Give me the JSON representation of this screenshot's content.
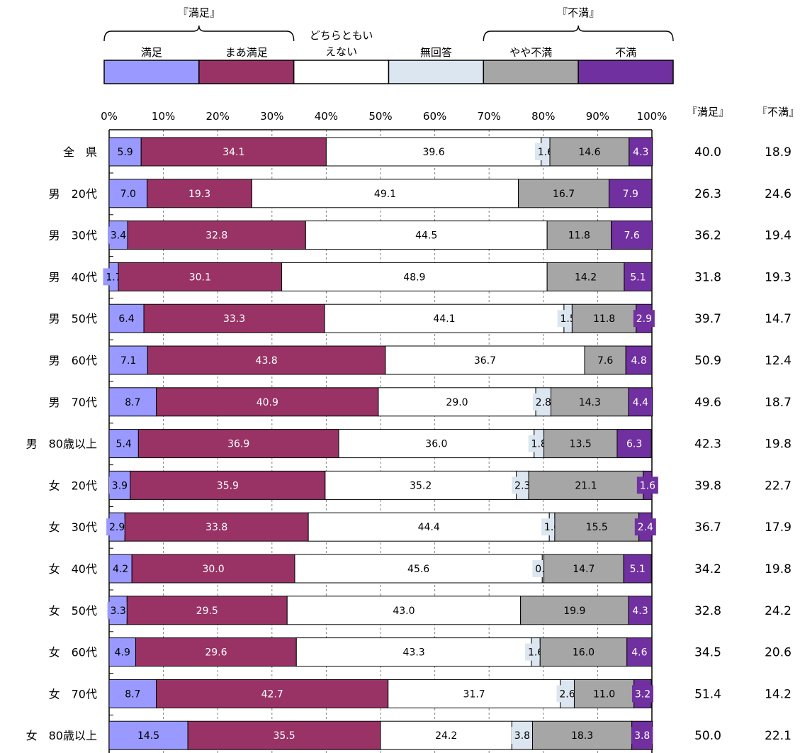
{
  "chart_data": {
    "type": "bar",
    "orientation": "horizontal",
    "stacked": true,
    "xlim": [
      0,
      100
    ],
    "x_ticks": [
      "0%",
      "10%",
      "20%",
      "30%",
      "40%",
      "50%",
      "60%",
      "70%",
      "80%",
      "90%",
      "100%"
    ],
    "legend": {
      "placement": "top",
      "groups": [
        {
          "label": "『満足』",
          "spans": [
            "満足",
            "まあ満足"
          ]
        },
        {
          "label": "『不満』",
          "spans": [
            "やや不満",
            "不満"
          ]
        }
      ]
    },
    "categories": [
      "全　県",
      "男　20代",
      "男　30代",
      "男　40代",
      "男　50代",
      "男　60代",
      "男　70代",
      "男　80歳以上",
      "女　20代",
      "女　30代",
      "女　40代",
      "女　50代",
      "女　60代",
      "女　70代",
      "女　80歳以上"
    ],
    "series": [
      {
        "name": "満足",
        "color": "#9999ff",
        "values": [
          5.9,
          7.0,
          3.4,
          1.7,
          6.4,
          7.1,
          8.7,
          5.4,
          3.9,
          2.9,
          4.2,
          3.3,
          4.9,
          8.7,
          14.5
        ]
      },
      {
        "name": "まあ満足",
        "color": "#993366",
        "values": [
          34.1,
          19.3,
          32.8,
          30.1,
          33.3,
          43.8,
          40.9,
          36.9,
          35.9,
          33.8,
          30.0,
          29.5,
          29.6,
          42.7,
          35.5
        ]
      },
      {
        "name": "どちらともいえない",
        "color": "#ffffff",
        "values": [
          39.6,
          49.1,
          44.5,
          48.9,
          44.1,
          36.7,
          29.0,
          36.0,
          35.2,
          44.4,
          45.6,
          43.0,
          43.3,
          31.7,
          24.2
        ]
      },
      {
        "name": "無回答",
        "color": "#dce6f0",
        "values": [
          1.6,
          0.0,
          0.0,
          0.0,
          1.5,
          0.0,
          2.8,
          1.8,
          2.3,
          1.0,
          0.3,
          0.0,
          1.6,
          2.6,
          3.8
        ]
      },
      {
        "name": "やや不満",
        "color": "#a6a6a6",
        "values": [
          14.6,
          16.7,
          11.8,
          14.2,
          11.8,
          7.6,
          14.3,
          13.5,
          21.1,
          15.5,
          14.7,
          19.9,
          16.0,
          11.0,
          18.3
        ]
      },
      {
        "name": "不満",
        "color": "#7030a0",
        "values": [
          4.3,
          7.9,
          7.6,
          5.1,
          2.9,
          4.8,
          4.4,
          6.3,
          1.6,
          2.4,
          5.1,
          4.3,
          4.6,
          3.2,
          3.8
        ]
      }
    ],
    "summary_columns": [
      {
        "header": "『満足』",
        "values": [
          "40.0",
          "26.3",
          "36.2",
          "31.8",
          "39.7",
          "50.9",
          "49.6",
          "42.3",
          "39.8",
          "36.7",
          "34.2",
          "32.8",
          "34.5",
          "51.4",
          "50.0"
        ]
      },
      {
        "header": "『不満』",
        "values": [
          "18.9",
          "24.6",
          "19.4",
          "19.3",
          "14.7",
          "12.4",
          "18.7",
          "19.8",
          "22.7",
          "17.9",
          "19.8",
          "24.2",
          "20.6",
          "14.2",
          "22.1"
        ]
      }
    ]
  }
}
